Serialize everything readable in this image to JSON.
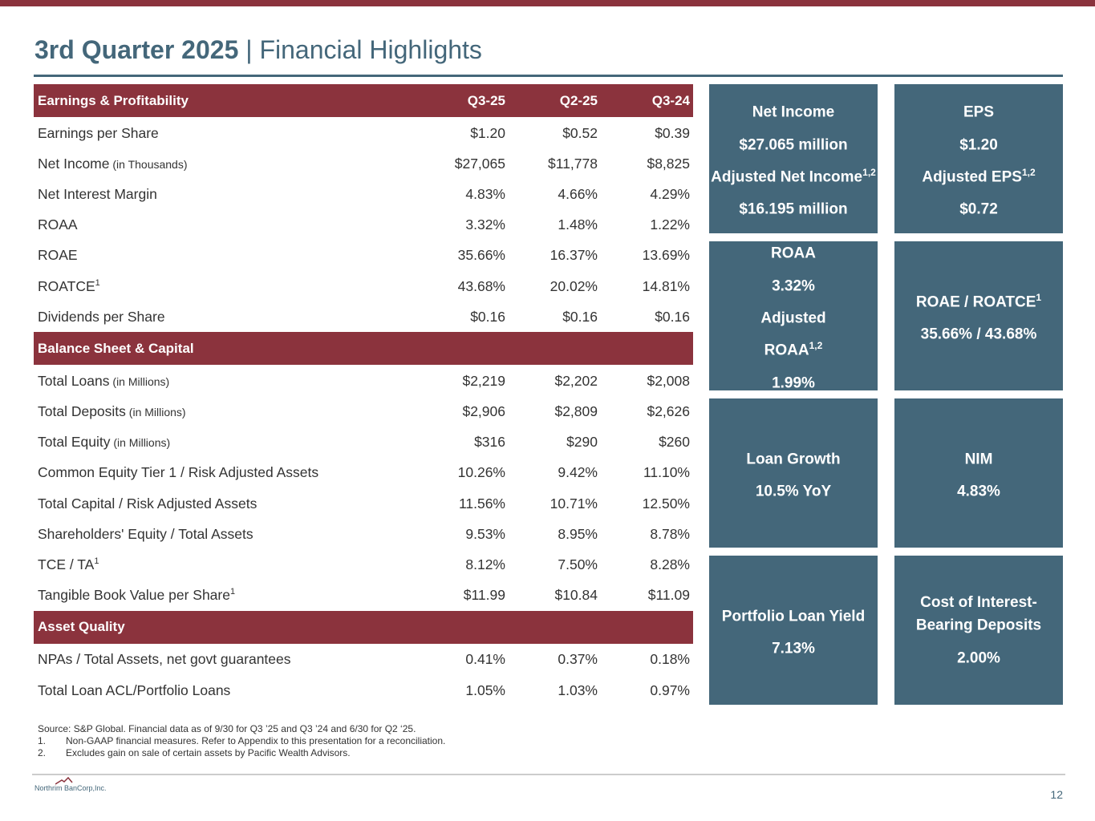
{
  "title": {
    "bold": "3rd Quarter 2025",
    "rest": " | Financial Highlights"
  },
  "columns": [
    "Q3-25",
    "Q2-25",
    "Q3-24"
  ],
  "sections": [
    {
      "name": "Earnings & Profitability",
      "rows": [
        {
          "label": "Earnings per Share",
          "note": "",
          "sup": "",
          "values": [
            "$1.20",
            "$0.52",
            "$0.39"
          ]
        },
        {
          "label": "Net Income",
          "note": " (in Thousands)",
          "sup": "",
          "values": [
            "$27,065",
            "$11,778",
            "$8,825"
          ]
        },
        {
          "label": "Net Interest Margin",
          "note": "",
          "sup": "",
          "values": [
            "4.83%",
            "4.66%",
            "4.29%"
          ]
        },
        {
          "label": "ROAA",
          "note": "",
          "sup": "",
          "values": [
            "3.32%",
            "1.48%",
            "1.22%"
          ]
        },
        {
          "label": "ROAE",
          "note": "",
          "sup": "",
          "values": [
            "35.66%",
            "16.37%",
            "13.69%"
          ]
        },
        {
          "label": "ROATCE",
          "note": "",
          "sup": "1",
          "values": [
            "43.68%",
            "20.02%",
            "14.81%"
          ]
        },
        {
          "label": "Dividends per Share",
          "note": "",
          "sup": "",
          "values": [
            "$0.16",
            "$0.16",
            "$0.16"
          ]
        }
      ]
    },
    {
      "name": "Balance Sheet & Capital",
      "rows": [
        {
          "label": "Total Loans",
          "note": " (in Millions)",
          "sup": "",
          "values": [
            "$2,219",
            "$2,202",
            "$2,008"
          ]
        },
        {
          "label": "Total Deposits",
          "note": " (in Millions)",
          "sup": "",
          "values": [
            "$2,906",
            "$2,809",
            "$2,626"
          ]
        },
        {
          "label": "Total Equity",
          "note": " (in Millions)",
          "sup": "",
          "values": [
            "$316",
            "$290",
            "$260"
          ]
        },
        {
          "label": "Common Equity Tier 1 / Risk Adjusted Assets",
          "note": "",
          "sup": "",
          "values": [
            "10.26%",
            "9.42%",
            "11.10%"
          ]
        },
        {
          "label": "Total Capital / Risk Adjusted Assets",
          "note": "",
          "sup": "",
          "values": [
            "11.56%",
            "10.71%",
            "12.50%"
          ]
        },
        {
          "label": "Shareholders' Equity / Total Assets",
          "note": "",
          "sup": "",
          "values": [
            "9.53%",
            "8.95%",
            "8.78%"
          ]
        },
        {
          "label": "TCE / TA",
          "note": "",
          "sup": "1",
          "values": [
            "8.12%",
            "7.50%",
            "8.28%"
          ]
        },
        {
          "label": "Tangible Book Value per Share",
          "note": "",
          "sup": "1",
          "values": [
            "$11.99",
            "$10.84",
            "$11.09"
          ]
        }
      ]
    },
    {
      "name": "Asset Quality",
      "rows": [
        {
          "label": "NPAs / Total Assets, net govt guarantees",
          "note": "",
          "sup": "",
          "values": [
            "0.41%",
            "0.37%",
            "0.18%"
          ]
        },
        {
          "label": "Total Loan ACL/Portfolio Loans",
          "note": "",
          "sup": "",
          "values": [
            "1.05%",
            "1.03%",
            "0.97%"
          ]
        }
      ]
    }
  ],
  "tiles": [
    {
      "lines": [
        {
          "t": "Net Income",
          "s": ""
        },
        {
          "t": "$27.065 million",
          "s": ""
        },
        {
          "t": "Adjusted Net Income",
          "s": "1,2"
        },
        {
          "t": "$16.195 million",
          "s": ""
        }
      ]
    },
    {
      "lines": [
        {
          "t": "EPS",
          "s": ""
        },
        {
          "t": "$1.20",
          "s": ""
        },
        {
          "t": "Adjusted EPS",
          "s": "1,2"
        },
        {
          "t": "$0.72",
          "s": ""
        }
      ]
    },
    {
      "lines": [
        {
          "t": "ROAA",
          "s": ""
        },
        {
          "t": "3.32%",
          "s": ""
        },
        {
          "t": "Adjusted",
          "s": ""
        },
        {
          "t": "ROAA",
          "s": "1,2"
        },
        {
          "t": "1.99%",
          "s": ""
        }
      ]
    },
    {
      "lines": [
        {
          "t": "ROAE / ROATCE",
          "s": "1"
        },
        {
          "t": "35.66% / 43.68%",
          "s": ""
        }
      ]
    },
    {
      "lines": [
        {
          "t": "Loan Growth",
          "s": ""
        },
        {
          "t": "10.5% YoY",
          "s": ""
        }
      ]
    },
    {
      "lines": [
        {
          "t": "NIM",
          "s": ""
        },
        {
          "t": "4.83%",
          "s": ""
        }
      ]
    },
    {
      "lines": [
        {
          "t": "Portfolio Loan Yield",
          "s": ""
        },
        {
          "t": "7.13%",
          "s": ""
        }
      ]
    },
    {
      "lines": [
        {
          "t": "Cost of Interest-Bearing Deposits",
          "s": ""
        },
        {
          "t": "2.00%",
          "s": ""
        }
      ]
    }
  ],
  "footnotes": {
    "source": "Source: S&P Global. Financial data as of 9/30 for Q3 ’25 and Q3 ’24 and 6/30 for Q2 ‘25.",
    "items": [
      {
        "n": "1.",
        "t": "Non-GAAP financial measures. Refer to Appendix to this presentation for a reconciliation."
      },
      {
        "n": "2.",
        "t": "Excludes gain on sale of certain assets by Pacific Wealth Advisors."
      }
    ]
  },
  "logo": "Northrim BanCorp,Inc.",
  "page_number": "12",
  "colors": {
    "maroon": "#8b333d",
    "slate": "#44677a"
  }
}
